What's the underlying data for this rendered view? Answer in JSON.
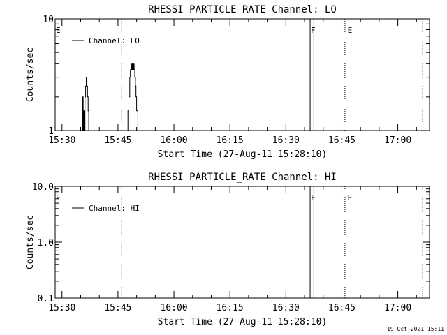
{
  "footer": {
    "timestamp": "19-Oct-2021 15:11"
  },
  "chart_data": [
    {
      "type": "line",
      "title": "RHESSI PARTICLE_RATE Channel: LO",
      "xlabel": "Start Time (27-Aug-11 15:28:10)",
      "ylabel": "Counts/sec",
      "y_scale": "log",
      "xlim": [
        "15:28:10",
        "17:08:30"
      ],
      "ylim": [
        1,
        10
      ],
      "x_ticks": [
        "15:30",
        "15:45",
        "16:00",
        "16:15",
        "16:30",
        "16:45",
        "17:00"
      ],
      "y_ticks": [
        "1",
        "10"
      ],
      "legend": "top-left",
      "grid": false,
      "series": [
        {
          "name": "Channel: LO",
          "x": [
            "15:35:00",
            "15:35:20",
            "15:35:30",
            "15:35:40",
            "15:35:50",
            "15:36:00",
            "15:36:10",
            "15:36:20",
            "15:36:30",
            "15:36:40",
            "15:36:50",
            "15:37:00",
            "15:37:10",
            "15:37:20",
            "15:37:30",
            "15:37:40",
            "15:37:50",
            "15:47:00",
            "15:47:20",
            "15:47:40",
            "15:47:55",
            "15:48:10",
            "15:48:20",
            "15:48:30",
            "15:48:40",
            "15:48:50",
            "15:49:00",
            "15:49:10",
            "15:49:20",
            "15:49:30",
            "15:49:40",
            "15:49:50",
            "15:50:00",
            "15:50:20",
            "15:50:40"
          ],
          "y": [
            1,
            1,
            2,
            1,
            1.5,
            1,
            2,
            2.5,
            3,
            2.5,
            2,
            1.5,
            1,
            1,
            1,
            1,
            1,
            1,
            1,
            1.5,
            2,
            3,
            3.5,
            4,
            3.5,
            4,
            3.5,
            4,
            3.5,
            3,
            2.5,
            2,
            1.5,
            1,
            1
          ]
        }
      ],
      "event_lines": [
        "15:46:00",
        "16:45:50",
        "17:06:40"
      ],
      "flag_bands": [
        {
          "label": "F",
          "start": "16:36:30",
          "end": "16:37:30"
        }
      ],
      "markers": [
        {
          "label": "E",
          "x": "15:28:10"
        },
        {
          "label": "E",
          "x": "16:46:20"
        }
      ]
    },
    {
      "type": "line",
      "title": "RHESSI PARTICLE_RATE Channel: HI",
      "xlabel": "Start Time (27-Aug-11 15:28:10)",
      "ylabel": "Counts/sec",
      "y_scale": "log",
      "xlim": [
        "15:28:10",
        "17:08:30"
      ],
      "ylim": [
        0.1,
        10
      ],
      "x_ticks": [
        "15:30",
        "15:45",
        "16:00",
        "16:15",
        "16:30",
        "16:45",
        "17:00"
      ],
      "y_ticks": [
        "0.1",
        "1.0",
        "10.0"
      ],
      "legend": "top-left",
      "grid": false,
      "series": [
        {
          "name": "Channel: HI",
          "x": [],
          "y": []
        }
      ],
      "event_lines": [
        "15:46:00",
        "16:45:50",
        "17:06:40"
      ],
      "flag_bands": [
        {
          "label": "F",
          "start": "16:36:30",
          "end": "16:37:30"
        }
      ],
      "markers": [
        {
          "label": "E",
          "x": "15:28:10"
        },
        {
          "label": "E",
          "x": "16:46:20"
        }
      ]
    }
  ]
}
